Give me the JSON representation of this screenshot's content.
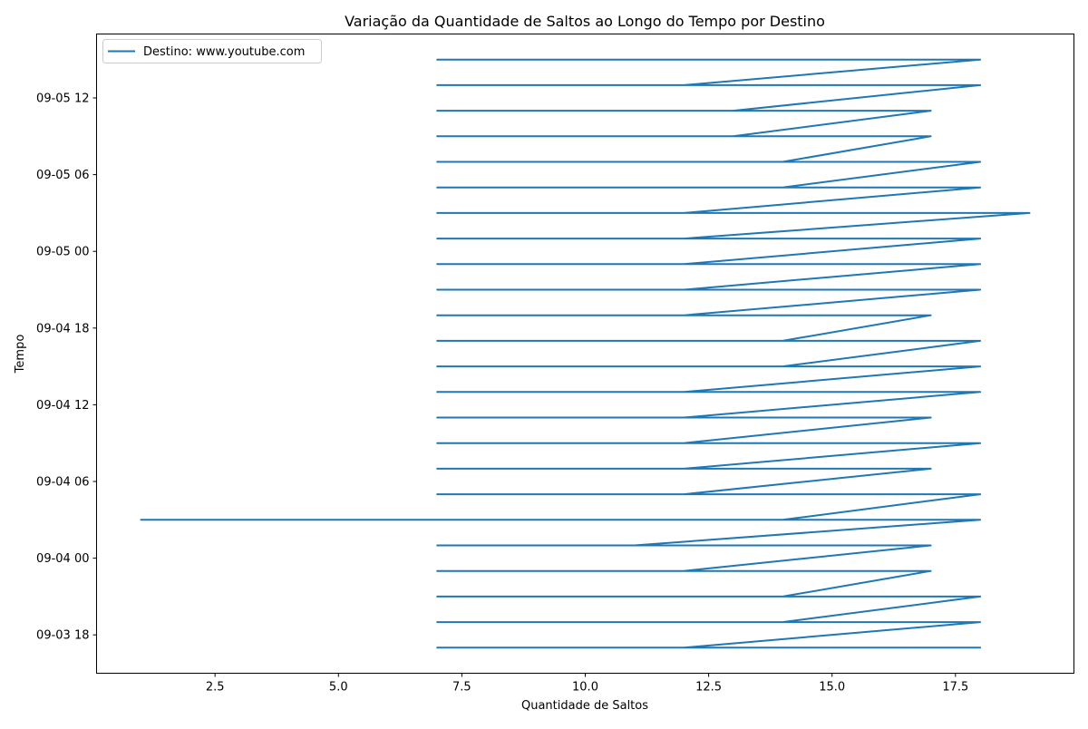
{
  "chart_data": {
    "type": "line",
    "title": "Variação da Quantidade de Saltos ao Longo do Tempo por Destino",
    "xlabel": "Quantidade de Saltos",
    "ylabel": "Tempo",
    "xlim": [
      0.1,
      19.9
    ],
    "ylim": [
      "09-03 15:00",
      "09-05 17:00"
    ],
    "x_ticks": [
      2.5,
      5.0,
      7.5,
      10.0,
      12.5,
      15.0,
      17.5
    ],
    "x_tick_labels": [
      "2.5",
      "5.0",
      "7.5",
      "10.0",
      "12.5",
      "15.0",
      "17.5"
    ],
    "y_ticks": [
      "09-03 18:00",
      "09-04 00:00",
      "09-04 06:00",
      "09-04 12:00",
      "09-04 18:00",
      "09-05 00:00",
      "09-05 06:00",
      "09-05 12:00"
    ],
    "y_tick_labels": [
      "09-03 18",
      "09-04 00",
      "09-04 06",
      "09-04 12",
      "09-04 18",
      "09-05 00",
      "09-05 06",
      "09-05 12"
    ],
    "grid": false,
    "legend_position": "upper-left",
    "color": "#1f77b4",
    "series": [
      {
        "name": "Destino: www.youtube.com",
        "bursts": [
          {
            "time": "09-03 17:00",
            "hops": [
              7,
              8,
              11,
              12,
              16,
              17,
              18
            ]
          },
          {
            "time": "09-03 19:00",
            "hops": [
              7,
              8,
              12,
              14,
              16,
              17,
              18
            ]
          },
          {
            "time": "09-03 21:00",
            "hops": [
              7,
              8,
              11,
              12,
              14,
              16,
              17,
              18
            ]
          },
          {
            "time": "09-03 23:00",
            "hops": [
              7,
              8,
              11,
              12,
              16,
              17
            ]
          },
          {
            "time": "09-04 01:00",
            "hops": [
              7,
              8,
              9,
              11,
              12,
              16,
              17
            ]
          },
          {
            "time": "09-04 03:00",
            "hops": [
              1,
              8,
              11,
              12,
              14,
              16,
              17,
              18
            ]
          },
          {
            "time": "09-04 05:00",
            "hops": [
              7,
              8,
              11,
              12,
              16,
              17,
              18
            ]
          },
          {
            "time": "09-04 07:00",
            "hops": [
              7,
              8,
              11,
              12,
              16,
              17
            ]
          },
          {
            "time": "09-04 09:00",
            "hops": [
              7,
              8,
              11,
              12,
              16,
              17,
              18
            ]
          },
          {
            "time": "09-04 11:00",
            "hops": [
              7,
              8,
              11,
              12,
              16,
              17
            ]
          },
          {
            "time": "09-04 13:00",
            "hops": [
              7,
              8,
              11,
              12,
              16,
              17,
              18
            ]
          },
          {
            "time": "09-04 15:00",
            "hops": [
              7,
              8,
              11,
              14,
              16,
              17,
              18
            ]
          },
          {
            "time": "09-04 17:00",
            "hops": [
              7,
              8,
              11,
              14,
              16,
              17,
              18
            ]
          },
          {
            "time": "09-04 19:00",
            "hops": [
              7,
              8,
              11,
              12,
              16,
              17
            ]
          },
          {
            "time": "09-04 21:00",
            "hops": [
              7,
              8,
              9,
              12,
              16,
              17,
              18
            ]
          },
          {
            "time": "09-04 23:00",
            "hops": [
              7,
              8,
              11,
              12,
              16,
              17,
              18
            ]
          },
          {
            "time": "09-05 01:00",
            "hops": [
              7,
              8,
              11,
              12,
              16,
              17,
              18
            ]
          },
          {
            "time": "09-05 03:00",
            "hops": [
              7,
              8,
              11,
              12,
              16,
              17,
              19
            ]
          },
          {
            "time": "09-05 05:00",
            "hops": [
              7,
              8,
              11,
              14,
              16,
              17,
              18
            ]
          },
          {
            "time": "09-05 07:00",
            "hops": [
              7,
              8,
              11,
              14,
              16,
              17,
              18
            ]
          },
          {
            "time": "09-05 09:00",
            "hops": [
              7,
              8,
              11,
              13,
              16,
              17
            ]
          },
          {
            "time": "09-05 11:00",
            "hops": [
              7,
              8,
              11,
              13,
              16,
              17
            ]
          },
          {
            "time": "09-05 13:00",
            "hops": [
              7,
              8,
              11,
              12,
              16,
              17,
              18
            ]
          },
          {
            "time": "09-05 15:00",
            "hops": [
              7,
              8,
              11,
              12,
              16,
              17,
              18
            ]
          }
        ]
      }
    ]
  }
}
